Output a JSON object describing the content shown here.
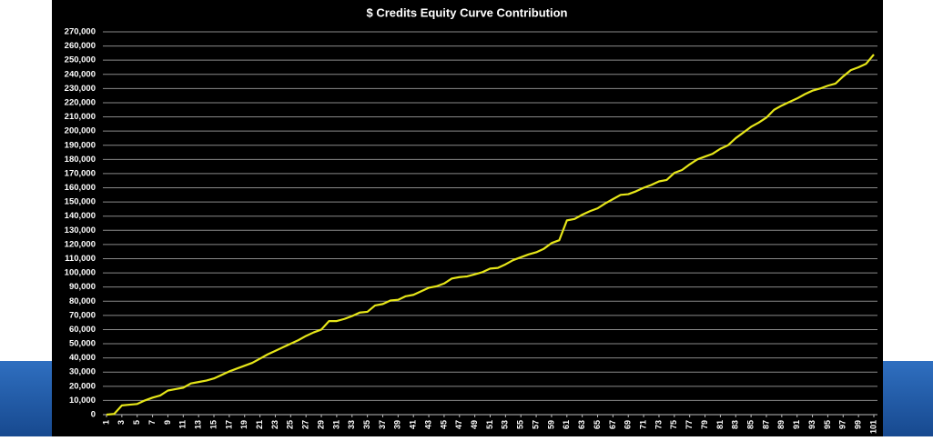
{
  "chart_data": {
    "type": "line",
    "title": "$ Credits Equity Curve Contribution",
    "x": [
      1,
      2,
      3,
      4,
      5,
      6,
      7,
      8,
      9,
      10,
      11,
      12,
      13,
      14,
      15,
      16,
      17,
      18,
      19,
      20,
      21,
      22,
      23,
      24,
      25,
      26,
      27,
      28,
      29,
      30,
      31,
      32,
      33,
      34,
      35,
      36,
      37,
      38,
      39,
      40,
      41,
      42,
      43,
      44,
      45,
      46,
      47,
      48,
      49,
      50,
      51,
      52,
      53,
      54,
      55,
      56,
      57,
      58,
      59,
      60,
      61,
      62,
      63,
      64,
      65,
      66,
      67,
      68,
      69,
      70,
      71,
      72,
      73,
      74,
      75,
      76,
      77,
      78,
      79,
      80,
      81,
      82,
      83,
      84,
      85,
      86,
      87,
      88,
      89,
      90,
      91,
      92,
      93,
      94,
      95,
      96,
      97,
      98,
      99,
      100,
      101
    ],
    "values": [
      0,
      500,
      6500,
      7000,
      7500,
      10000,
      12000,
      13500,
      17000,
      18000,
      19000,
      22000,
      23000,
      24000,
      25500,
      28000,
      30500,
      32500,
      34500,
      36500,
      39500,
      42500,
      45000,
      47500,
      50000,
      52500,
      55500,
      58000,
      60000,
      66000,
      66000,
      67500,
      69500,
      72000,
      72500,
      77000,
      78000,
      80500,
      81000,
      83500,
      84500,
      87000,
      89500,
      90500,
      92500,
      96000,
      97000,
      97500,
      99000,
      100500,
      103000,
      103500,
      106000,
      109000,
      111000,
      113000,
      114500,
      117000,
      121000,
      123000,
      137000,
      138000,
      141000,
      143500,
      145500,
      149000,
      152000,
      155000,
      155500,
      157500,
      160000,
      162000,
      164500,
      165500,
      170500,
      172500,
      176500,
      180000,
      182000,
      184000,
      187500,
      190000,
      195000,
      199000,
      203000,
      206000,
      209500,
      215000,
      218000,
      220500,
      223000,
      226000,
      228500,
      230000,
      232000,
      233500,
      238500,
      243000,
      245000,
      247500,
      254000
    ],
    "color": "#e6e619",
    "xlim": [
      1,
      101
    ],
    "xticks": [
      1,
      3,
      5,
      7,
      9,
      11,
      13,
      15,
      17,
      19,
      21,
      23,
      25,
      27,
      29,
      31,
      33,
      35,
      37,
      39,
      41,
      43,
      45,
      47,
      49,
      51,
      53,
      55,
      57,
      59,
      61,
      63,
      65,
      67,
      69,
      71,
      73,
      75,
      77,
      79,
      81,
      83,
      85,
      87,
      89,
      91,
      93,
      95,
      97,
      99,
      101
    ],
    "ylim": [
      0,
      270000
    ],
    "yticks": [
      0,
      {
        "value": 10000,
        "label": "10,000"
      },
      {
        "value": 20000,
        "label": "20,000"
      },
      {
        "value": 30000,
        "label": "30,000"
      },
      {
        "value": 40000,
        "label": "40,000"
      },
      {
        "value": 50000,
        "label": "50,000"
      },
      {
        "value": 60000,
        "label": "60,000"
      },
      {
        "value": 70000,
        "label": "70,000"
      },
      {
        "value": 80000,
        "label": "80,000"
      },
      {
        "value": 90000,
        "label": "90,000"
      },
      {
        "value": 100000,
        "label": "100,000"
      },
      {
        "value": 110000,
        "label": "110,000"
      },
      {
        "value": 120000,
        "label": "120,000"
      },
      {
        "value": 130000,
        "label": "130,000"
      },
      {
        "value": 140000,
        "label": "140,000"
      },
      {
        "value": 150000,
        "label": "150,000"
      },
      {
        "value": 160000,
        "label": "160,000"
      },
      {
        "value": 170000,
        "label": "170,000"
      },
      {
        "value": 180000,
        "label": "180,000"
      },
      {
        "value": 190000,
        "label": "190,000"
      },
      {
        "value": 200000,
        "label": "200,000"
      },
      {
        "value": 210000,
        "label": "210,000"
      },
      {
        "value": 220000,
        "label": "220,000"
      },
      {
        "value": 230000,
        "label": "230,000"
      },
      {
        "value": 240000,
        "label": "240,000"
      },
      {
        "value": 250000,
        "label": "250,000"
      },
      {
        "value": 260000,
        "label": "260,000"
      },
      {
        "value": 270000,
        "label": "270,000"
      }
    ],
    "grid": true
  }
}
